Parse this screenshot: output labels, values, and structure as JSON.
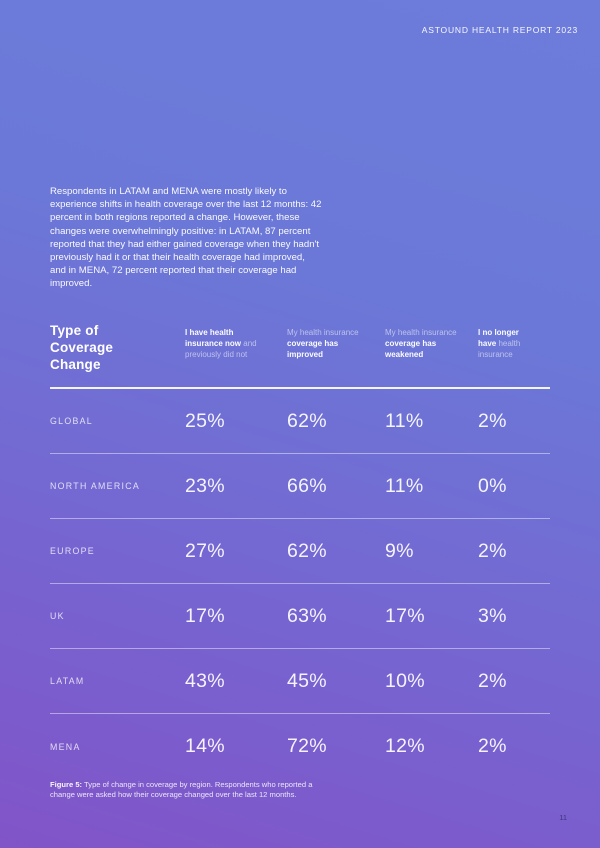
{
  "page": {
    "header": "ASTOUND HEALTH REPORT 2023",
    "page_number": "11"
  },
  "intro": {
    "text": "Respondents in LATAM and MENA were mostly likely to experience shifts in health coverage over the last 12 months: 42 percent in both regions reported a change. However, these changes were overwhelmingly positive: in LATAM, 87 percent reported that they had either gained coverage when they hadn't previously had it or that their health coverage had improved, and in MENA, 72 percent reported that their coverage had improved."
  },
  "table": {
    "title": "Type of Coverage Change",
    "columns": [
      {
        "strong": "I have health insurance now",
        "muted": "and previously did not"
      },
      {
        "muted": "My health insurance",
        "strong": "coverage has improved"
      },
      {
        "muted": "My health insurance",
        "strong": "coverage has weakened"
      },
      {
        "strong": "I no longer have",
        "muted": "health insurance"
      }
    ],
    "rows": [
      {
        "region": "GLOBAL",
        "values": [
          "25%",
          "62%",
          "11%",
          "2%"
        ]
      },
      {
        "region": "NORTH AMERICA",
        "values": [
          "23%",
          "66%",
          "11%",
          "0%"
        ]
      },
      {
        "region": "EUROPE",
        "values": [
          "27%",
          "62%",
          "9%",
          "2%"
        ]
      },
      {
        "region": "UK",
        "values": [
          "17%",
          "63%",
          "17%",
          "3%"
        ]
      },
      {
        "region": "LATAM",
        "values": [
          "43%",
          "45%",
          "10%",
          "2%"
        ]
      },
      {
        "region": "MENA",
        "values": [
          "14%",
          "72%",
          "12%",
          "2%"
        ]
      }
    ]
  },
  "caption": {
    "label": "Figure 5:",
    "text": " Type of change in coverage by region. Respondents who reported a change were asked how their coverage changed over the last 12 months."
  },
  "colors": {
    "gradient_top": "#6d7cdb",
    "gradient_bottom": "#8154c8",
    "text": "#ffffff",
    "page_number": "#3b3a78"
  }
}
